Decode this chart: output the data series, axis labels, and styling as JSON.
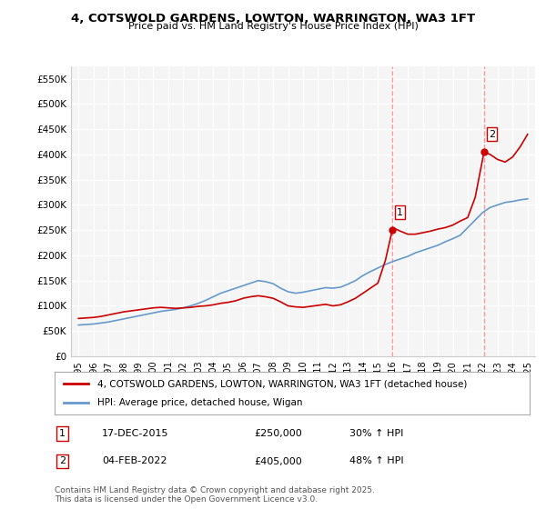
{
  "title": "4, COTSWOLD GARDENS, LOWTON, WARRINGTON, WA3 1FT",
  "subtitle": "Price paid vs. HM Land Registry's House Price Index (HPI)",
  "ylabel": "",
  "xlabel": "",
  "ylim": [
    0,
    575000
  ],
  "yticks": [
    0,
    50000,
    100000,
    150000,
    200000,
    250000,
    300000,
    350000,
    400000,
    450000,
    500000,
    550000
  ],
  "ytick_labels": [
    "£0",
    "£50K",
    "£100K",
    "£150K",
    "£200K",
    "£250K",
    "£300K",
    "£350K",
    "£400K",
    "£450K",
    "£500K",
    "£550K"
  ],
  "xlim_start": 1994.5,
  "xlim_end": 2025.5,
  "xticks": [
    1995,
    1996,
    1997,
    1998,
    1999,
    2000,
    2001,
    2002,
    2003,
    2004,
    2005,
    2006,
    2007,
    2008,
    2009,
    2010,
    2011,
    2012,
    2013,
    2014,
    2015,
    2016,
    2017,
    2018,
    2019,
    2020,
    2021,
    2022,
    2023,
    2024,
    2025
  ],
  "red_color": "#cc0000",
  "blue_color": "#6699cc",
  "marker_color": "#cc0000",
  "dashed_color": "#ff9999",
  "background_color": "#ffffff",
  "plot_bg_color": "#f5f5f5",
  "grid_color": "#ffffff",
  "point1": {
    "year": 2015.96,
    "price": 250000,
    "label": "1",
    "date": "17-DEC-2015",
    "pct": "30%",
    "direction": "↑"
  },
  "point2": {
    "year": 2022.09,
    "price": 405000,
    "label": "2",
    "date": "04-FEB-2022",
    "pct": "48%",
    "direction": "↑"
  },
  "legend_line1": "4, COTSWOLD GARDENS, LOWTON, WARRINGTON, WA3 1FT (detached house)",
  "legend_line2": "HPI: Average price, detached house, Wigan",
  "footer": "Contains HM Land Registry data © Crown copyright and database right 2025.\nThis data is licensed under the Open Government Licence v3.0.",
  "red_x": [
    1995.0,
    1995.5,
    1996.0,
    1996.5,
    1997.0,
    1997.5,
    1998.0,
    1998.5,
    1999.0,
    1999.5,
    2000.0,
    2000.5,
    2001.0,
    2001.5,
    2002.0,
    2002.5,
    2003.0,
    2003.5,
    2004.0,
    2004.5,
    2005.0,
    2005.5,
    2006.0,
    2006.5,
    2007.0,
    2007.5,
    2008.0,
    2008.5,
    2009.0,
    2009.5,
    2010.0,
    2010.5,
    2011.0,
    2011.5,
    2012.0,
    2012.5,
    2013.0,
    2013.5,
    2014.0,
    2014.5,
    2015.0,
    2015.5,
    2015.96,
    2016.0,
    2016.5,
    2017.0,
    2017.5,
    2018.0,
    2018.5,
    2019.0,
    2019.5,
    2020.0,
    2020.5,
    2021.0,
    2021.5,
    2022.09,
    2022.5,
    2023.0,
    2023.5,
    2024.0,
    2024.5,
    2025.0
  ],
  "red_y": [
    75000,
    76000,
    77000,
    79000,
    82000,
    85000,
    88000,
    90000,
    92000,
    94000,
    96000,
    97000,
    96000,
    95000,
    96000,
    97000,
    99000,
    100000,
    102000,
    105000,
    107000,
    110000,
    115000,
    118000,
    120000,
    118000,
    115000,
    108000,
    100000,
    98000,
    97000,
    99000,
    101000,
    103000,
    100000,
    102000,
    108000,
    115000,
    125000,
    135000,
    145000,
    190000,
    250000,
    255000,
    248000,
    242000,
    242000,
    245000,
    248000,
    252000,
    255000,
    260000,
    268000,
    275000,
    315000,
    405000,
    400000,
    390000,
    385000,
    395000,
    415000,
    440000
  ],
  "blue_x": [
    1995.0,
    1995.5,
    1996.0,
    1996.5,
    1997.0,
    1997.5,
    1998.0,
    1998.5,
    1999.0,
    1999.5,
    2000.0,
    2000.5,
    2001.0,
    2001.5,
    2002.0,
    2002.5,
    2003.0,
    2003.5,
    2004.0,
    2004.5,
    2005.0,
    2005.5,
    2006.0,
    2006.5,
    2007.0,
    2007.5,
    2008.0,
    2008.5,
    2009.0,
    2009.5,
    2010.0,
    2010.5,
    2011.0,
    2011.5,
    2012.0,
    2012.5,
    2013.0,
    2013.5,
    2014.0,
    2014.5,
    2015.0,
    2015.5,
    2016.0,
    2016.5,
    2017.0,
    2017.5,
    2018.0,
    2018.5,
    2019.0,
    2019.5,
    2020.0,
    2020.5,
    2021.0,
    2021.5,
    2022.0,
    2022.5,
    2023.0,
    2023.5,
    2024.0,
    2024.5,
    2025.0
  ],
  "blue_y": [
    62000,
    63000,
    64000,
    66000,
    68000,
    71000,
    74000,
    77000,
    80000,
    83000,
    86000,
    89000,
    91000,
    93000,
    96000,
    100000,
    105000,
    111000,
    118000,
    125000,
    130000,
    135000,
    140000,
    145000,
    150000,
    148000,
    144000,
    135000,
    128000,
    125000,
    127000,
    130000,
    133000,
    136000,
    135000,
    137000,
    143000,
    150000,
    160000,
    168000,
    175000,
    182000,
    188000,
    193000,
    198000,
    205000,
    210000,
    215000,
    220000,
    227000,
    233000,
    240000,
    255000,
    270000,
    285000,
    295000,
    300000,
    305000,
    307000,
    310000,
    312000
  ]
}
